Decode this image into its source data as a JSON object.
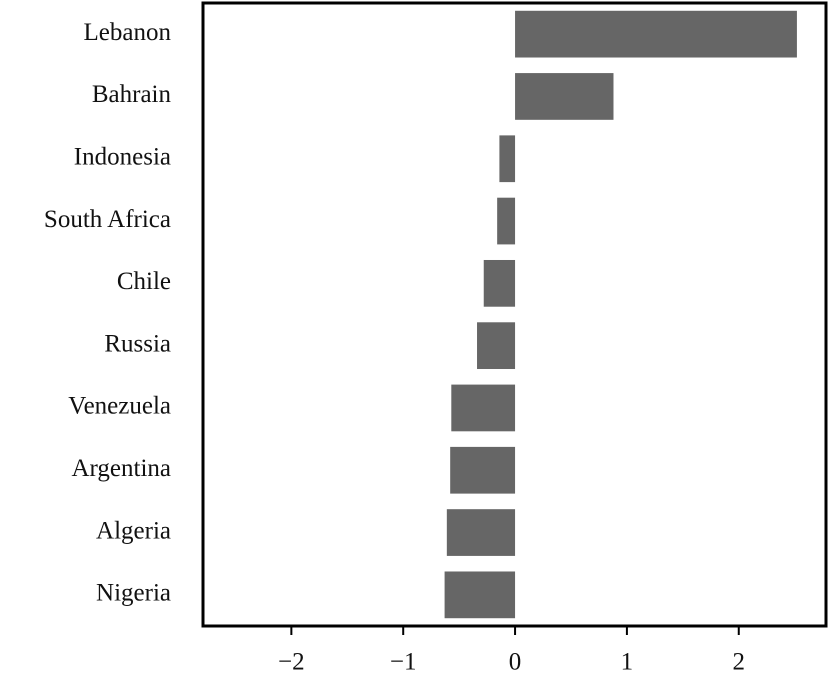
{
  "chart_data": {
    "type": "barh",
    "categories": [
      "Lebanon",
      "Bahrain",
      "Indonesia",
      "South Africa",
      "Chile",
      "Russia",
      "Venezuela",
      "Argentina",
      "Algeria",
      "Nigeria"
    ],
    "values": [
      2.52,
      0.88,
      -0.14,
      -0.16,
      -0.28,
      -0.34,
      -0.57,
      -0.58,
      -0.61,
      -0.63
    ],
    "color": "#666666",
    "xlim": [
      -2.79,
      2.78
    ],
    "xticks": [
      {
        "value": -2,
        "label": "−2"
      },
      {
        "value": -1,
        "label": "−1"
      },
      0,
      1,
      2
    ],
    "grid": false
  }
}
